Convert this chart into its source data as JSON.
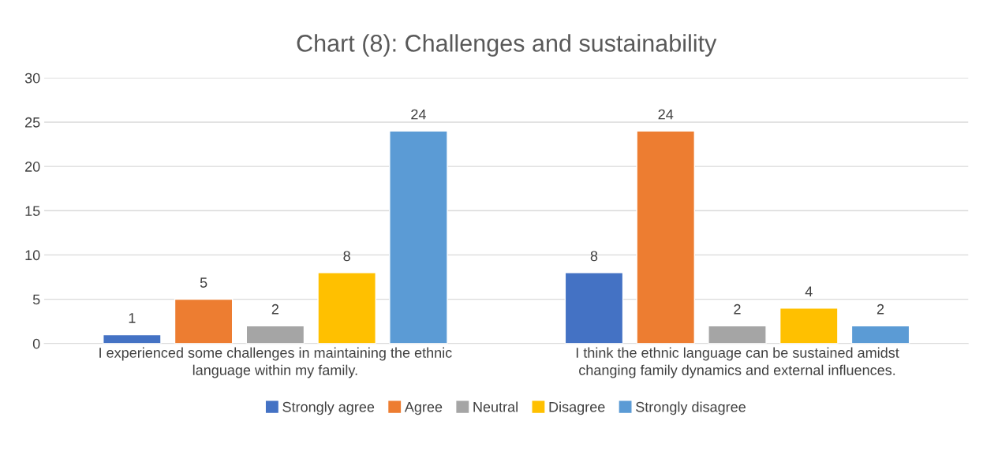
{
  "chart_data": {
    "type": "bar",
    "title": "Chart (8): Challenges and sustainability",
    "categories": [
      "I experienced some challenges in maintaining the ethnic\nlanguage within my family.",
      "I think the ethnic language can be sustained amidst\nchanging family dynamics and external influences."
    ],
    "series": [
      {
        "name": "Strongly agree",
        "color": "#4472c4",
        "values": [
          1,
          8
        ]
      },
      {
        "name": "Agree",
        "color": "#ed7d31",
        "values": [
          5,
          24
        ]
      },
      {
        "name": "Neutral",
        "color": "#a5a5a5",
        "values": [
          2,
          2
        ]
      },
      {
        "name": "Disagree",
        "color": "#ffc000",
        "values": [
          8,
          4
        ]
      },
      {
        "name": "Strongly disagree",
        "color": "#5b9bd5",
        "values": [
          24,
          2
        ]
      }
    ],
    "ylim": [
      0,
      30
    ],
    "yticks": [
      0,
      5,
      10,
      15,
      20,
      25,
      30
    ],
    "grid": "y",
    "legend": "bottom",
    "data_labels": true
  }
}
